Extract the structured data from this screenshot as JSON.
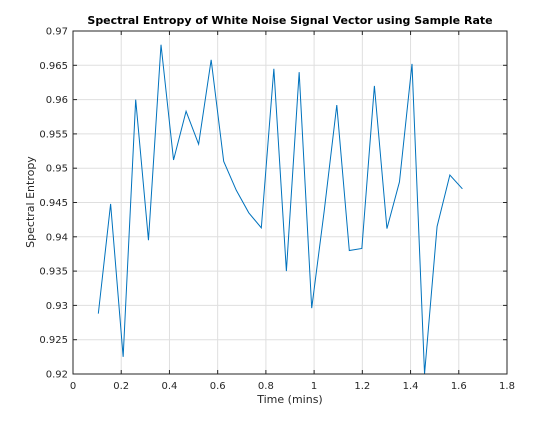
{
  "chart_data": {
    "type": "line",
    "title": "Spectral Entropy of White Noise Signal Vector using Sample Rate",
    "xlabel": "Time (mins)",
    "ylabel": "Spectral Entropy",
    "xlim": [
      0,
      1.8
    ],
    "ylim": [
      0.92,
      0.97
    ],
    "xticks": [
      0,
      0.2,
      0.4,
      0.6,
      0.8,
      1,
      1.2,
      1.4,
      1.6,
      1.8
    ],
    "xtick_labels": [
      "0",
      "0.2",
      "0.4",
      "0.6",
      "0.8",
      "1",
      "1.2",
      "1.4",
      "1.6",
      "1.8"
    ],
    "yticks": [
      0.92,
      0.925,
      0.93,
      0.935,
      0.94,
      0.945,
      0.95,
      0.955,
      0.96,
      0.965,
      0.97
    ],
    "ytick_labels": [
      "0.92",
      "0.925",
      "0.93",
      "0.935",
      "0.94",
      "0.945",
      "0.95",
      "0.955",
      "0.96",
      "0.965",
      "0.97"
    ],
    "grid": true,
    "line_color": "#0072bd",
    "x": [
      0.105,
      0.156,
      0.208,
      0.26,
      0.313,
      0.365,
      0.417,
      0.469,
      0.521,
      0.573,
      0.625,
      0.677,
      0.729,
      0.781,
      0.833,
      0.885,
      0.938,
      0.99,
      1.042,
      1.094,
      1.146,
      1.198,
      1.25,
      1.302,
      1.354,
      1.406,
      1.458,
      1.51,
      1.563,
      1.615
    ],
    "y": [
      0.9288,
      0.9448,
      0.9225,
      0.96,
      0.9395,
      0.968,
      0.9512,
      0.9583,
      0.9535,
      0.9658,
      0.951,
      0.9468,
      0.9435,
      0.9413,
      0.9645,
      0.935,
      0.964,
      0.9296,
      0.9438,
      0.9592,
      0.938,
      0.9383,
      0.962,
      0.9412,
      0.948,
      0.9652,
      0.92,
      0.9415,
      0.949,
      0.947
    ]
  }
}
